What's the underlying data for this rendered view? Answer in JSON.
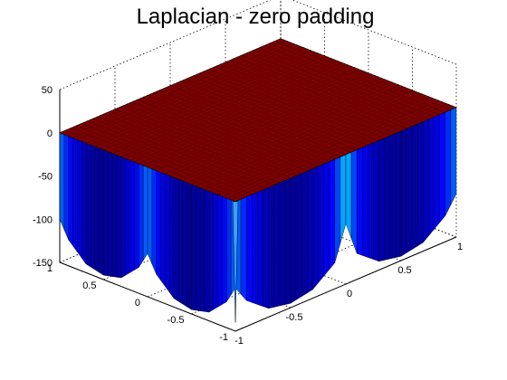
{
  "chart_data": {
    "type": "surface",
    "title": "Laplacian - zero padding",
    "x": {
      "label": "",
      "ticks": [
        -1,
        -0.5,
        0,
        0.5,
        1
      ],
      "lim": [
        -1,
        1
      ]
    },
    "y": {
      "label": "",
      "ticks": [
        -1,
        -0.5,
        0,
        0.5,
        1
      ],
      "lim": [
        -1,
        1
      ]
    },
    "z": {
      "label": "",
      "ticks": [
        -150,
        -100,
        -50,
        0,
        50
      ],
      "lim": [
        -150,
        50
      ]
    },
    "grid": true,
    "box": true,
    "colormap": "jet",
    "surface": {
      "top_plateau_z": 0,
      "front_x_edge": {
        "x": [
          -1,
          -0.9,
          -0.7,
          -0.5,
          -0.3,
          -0.1,
          0
        ],
        "z": [
          -100,
          -120,
          -140,
          -145,
          -140,
          -120,
          -80
        ]
      },
      "front_y_edge": {
        "y": [
          -1,
          -0.9,
          -0.7,
          -0.5,
          -0.3,
          -0.1,
          0
        ],
        "z": [
          -100,
          -120,
          -140,
          -145,
          -140,
          -120,
          -100
        ]
      },
      "corner_spike_z": -140
    },
    "tick_labels": {
      "z": [
        "50",
        "0",
        "-50",
        "-100",
        "-150"
      ],
      "left": [
        "1",
        "0.5",
        "0",
        "-0.5",
        "-1"
      ],
      "front": [
        "-1",
        "-0.5",
        "0",
        "0.5",
        "1"
      ]
    }
  }
}
